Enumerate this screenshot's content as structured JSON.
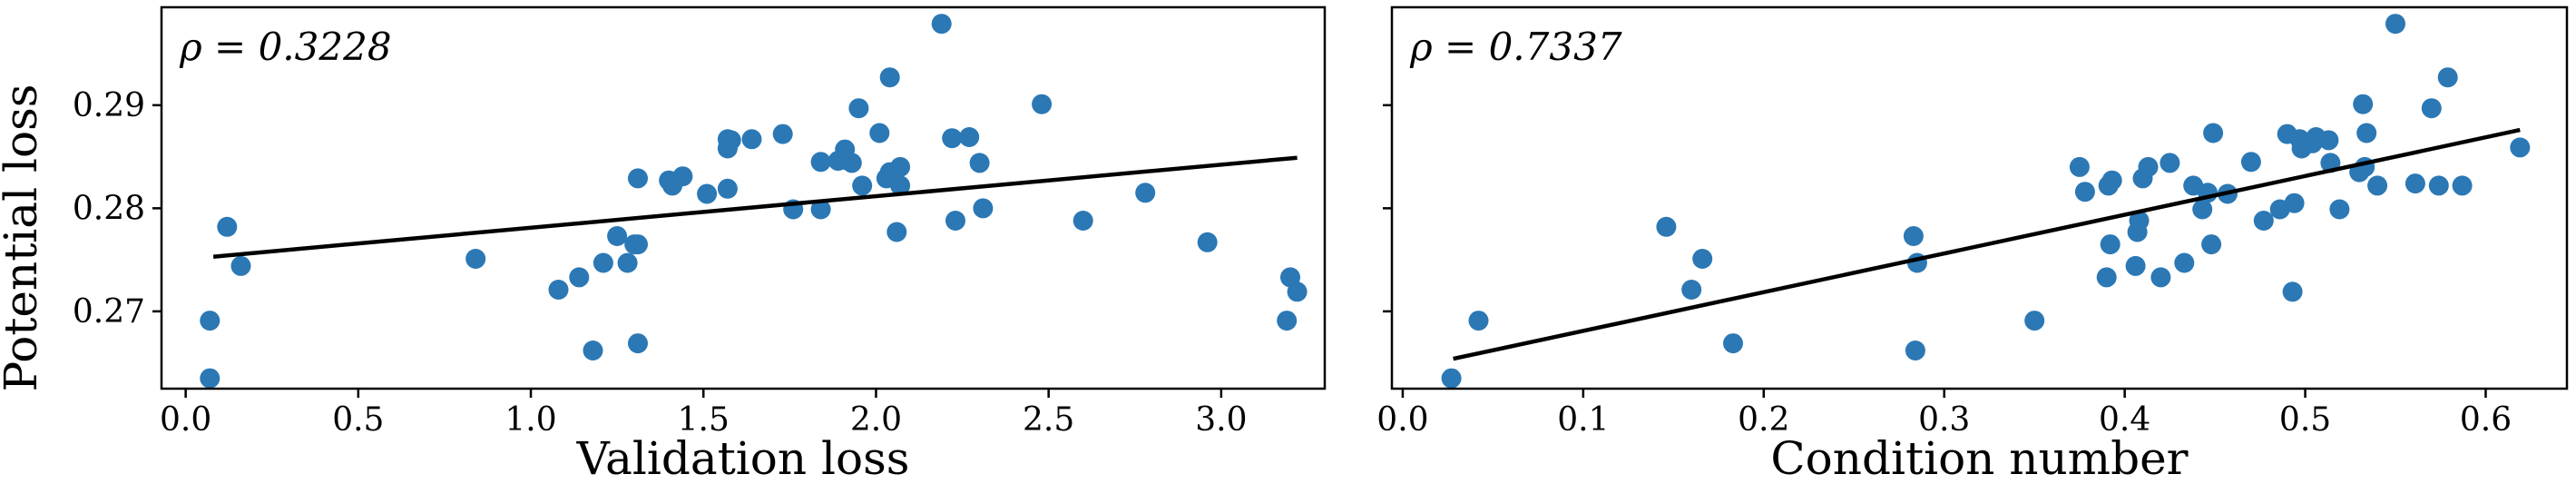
{
  "shared_ylabel": "Potential loss",
  "chart_data": [
    {
      "type": "scatter",
      "xlabel": "Validation loss",
      "ylabel": "Potential loss",
      "annotation": "ρ = 0.3228",
      "xlim": [
        -0.07,
        3.3
      ],
      "ylim": [
        0.2625,
        0.2995
      ],
      "xticks": [
        0.0,
        0.5,
        1.0,
        1.5,
        2.0,
        2.5,
        3.0
      ],
      "xtick_labels": [
        "0.0",
        "0.5",
        "1.0",
        "1.5",
        "2.0",
        "2.5",
        "3.0"
      ],
      "yticks": [
        0.27,
        0.28,
        0.29
      ],
      "ytick_labels": [
        "0.27",
        "0.28",
        "0.29"
      ],
      "grid": false,
      "fit_line": {
        "x": [
          0.08,
          3.22
        ],
        "y": [
          0.2753,
          0.2849
        ]
      },
      "points": {
        "x": [
          0.07,
          0.07,
          0.12,
          0.16,
          0.84,
          1.08,
          1.14,
          1.18,
          1.21,
          1.25,
          1.28,
          1.3,
          1.31,
          1.31,
          1.31,
          1.4,
          1.41,
          1.44,
          1.51,
          1.57,
          1.57,
          1.57,
          1.58,
          1.64,
          1.73,
          1.76,
          1.84,
          1.84,
          1.89,
          1.91,
          1.91,
          1.93,
          1.95,
          1.96,
          2.01,
          2.03,
          2.04,
          2.04,
          2.06,
          2.07,
          2.07,
          2.19,
          2.22,
          2.23,
          2.27,
          2.3,
          2.31,
          2.48,
          2.6,
          2.78,
          2.96,
          3.19,
          3.2,
          3.22
        ],
        "y": [
          0.2691,
          0.2635,
          0.2782,
          0.2744,
          0.2751,
          0.2721,
          0.2733,
          0.2662,
          0.2747,
          0.2773,
          0.2747,
          0.2765,
          0.2829,
          0.2669,
          0.2765,
          0.2827,
          0.2822,
          0.2831,
          0.2814,
          0.2867,
          0.2858,
          0.2819,
          0.2866,
          0.2867,
          0.2872,
          0.2799,
          0.2845,
          0.2799,
          0.2846,
          0.2847,
          0.2857,
          0.2844,
          0.2897,
          0.2822,
          0.2873,
          0.2829,
          0.2927,
          0.2835,
          0.2777,
          0.2822,
          0.284,
          0.2979,
          0.2868,
          0.2788,
          0.2869,
          0.2844,
          0.28,
          0.2901,
          0.2788,
          0.2815,
          0.2767,
          0.2691,
          0.2733,
          0.2719
        ]
      }
    },
    {
      "type": "scatter",
      "xlabel": "Condition number",
      "ylabel": "Potential loss",
      "annotation": "ρ = 0.7337",
      "xlim": [
        -0.006,
        0.645
      ],
      "ylim": [
        0.2625,
        0.2995
      ],
      "xticks": [
        0.0,
        0.1,
        0.2,
        0.3,
        0.4,
        0.5,
        0.6
      ],
      "xtick_labels": [
        "0.0",
        "0.1",
        "0.2",
        "0.3",
        "0.4",
        "0.5",
        "0.6"
      ],
      "yticks": [
        0.27,
        0.28,
        0.29
      ],
      "ytick_labels": [],
      "grid": false,
      "fit_line": {
        "x": [
          0.028,
          0.619
        ],
        "y": [
          0.2654,
          0.2876
        ]
      },
      "points": {
        "x": [
          0.027,
          0.042,
          0.146,
          0.16,
          0.166,
          0.183,
          0.283,
          0.284,
          0.285,
          0.35,
          0.375,
          0.378,
          0.39,
          0.391,
          0.392,
          0.393,
          0.406,
          0.407,
          0.408,
          0.41,
          0.413,
          0.42,
          0.425,
          0.433,
          0.438,
          0.443,
          0.446,
          0.448,
          0.449,
          0.457,
          0.47,
          0.477,
          0.486,
          0.49,
          0.493,
          0.494,
          0.497,
          0.498,
          0.504,
          0.506,
          0.513,
          0.514,
          0.519,
          0.53,
          0.532,
          0.533,
          0.534,
          0.54,
          0.55,
          0.561,
          0.57,
          0.574,
          0.579,
          0.587,
          0.619
        ],
        "y": [
          0.2635,
          0.2691,
          0.2782,
          0.2721,
          0.2751,
          0.2669,
          0.2773,
          0.2662,
          0.2747,
          0.2691,
          0.284,
          0.2816,
          0.2733,
          0.2822,
          0.2765,
          0.2827,
          0.2744,
          0.2777,
          0.2788,
          0.2829,
          0.284,
          0.2733,
          0.2844,
          0.2747,
          0.2822,
          0.2799,
          0.2815,
          0.2765,
          0.2873,
          0.2814,
          0.2845,
          0.2788,
          0.2799,
          0.2872,
          0.2719,
          0.2805,
          0.2867,
          0.2858,
          0.2863,
          0.2869,
          0.2866,
          0.2844,
          0.2799,
          0.2835,
          0.2901,
          0.284,
          0.2873,
          0.2822,
          0.2979,
          0.2824,
          0.2897,
          0.2822,
          0.2927,
          0.2822,
          0.2859
        ]
      }
    }
  ]
}
